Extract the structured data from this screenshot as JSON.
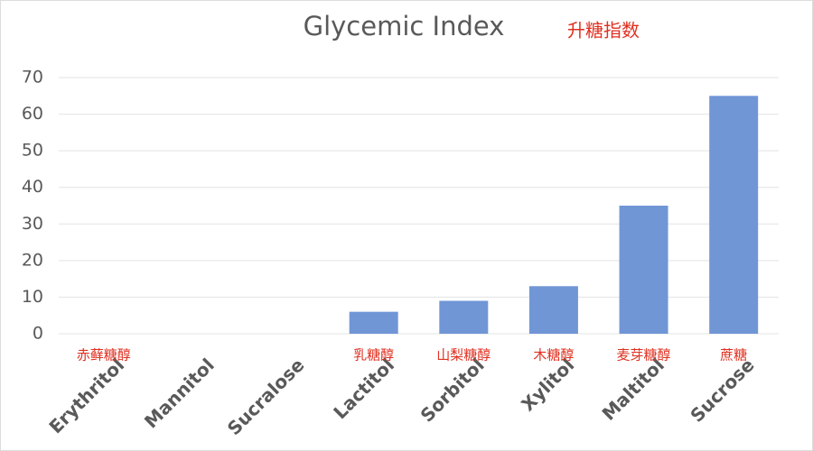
{
  "chart_data": {
    "type": "bar",
    "title": "Glycemic Index",
    "annotation": "升糖指数",
    "categories": [
      "Erythritol",
      "Mannitol",
      "Sucralose",
      "Lactitol",
      "Sorbitol",
      "Xylitol",
      "Maltitol",
      "Sucrose"
    ],
    "category_notes": [
      "赤藓糖醇",
      null,
      null,
      "乳糖醇",
      "山梨糖醇",
      "木糖醇",
      "麦芽糖醇",
      "蔗糖"
    ],
    "values": [
      0,
      0,
      0,
      6,
      9,
      13,
      35,
      65
    ],
    "color": "#7196d6",
    "ylim": [
      0,
      70
    ],
    "yticks": [
      0,
      10,
      20,
      30,
      40,
      50,
      60,
      70
    ],
    "grid": true
  }
}
